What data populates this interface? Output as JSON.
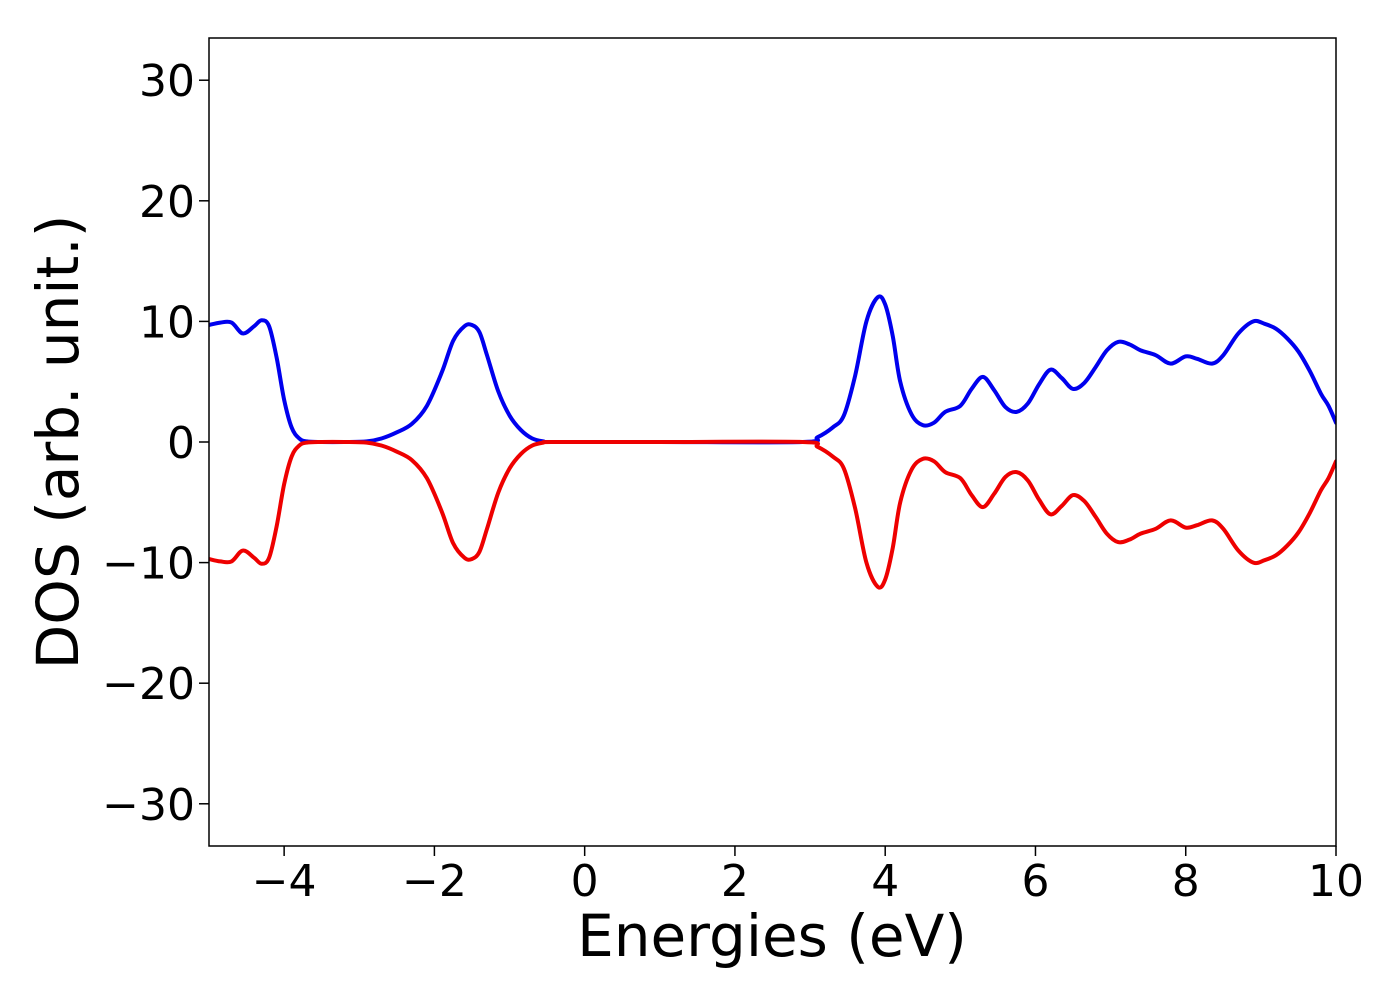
{
  "chart_data": {
    "type": "line",
    "title": "",
    "xlabel": "Energies (eV)",
    "ylabel": "DOS (arb. unit.)",
    "xlim": [
      -5,
      10
    ],
    "ylim": [
      -33.5,
      33.5
    ],
    "grid": false,
    "x_ticks": [
      -4,
      -2,
      0,
      2,
      4,
      6,
      8,
      10
    ],
    "x_tick_labels": [
      "−4",
      "−2",
      "0",
      "2",
      "4",
      "6",
      "8",
      "10"
    ],
    "y_ticks": [
      -30,
      -20,
      -10,
      0,
      10,
      20,
      30
    ],
    "y_tick_labels": [
      "−30",
      "−20",
      "−10",
      "0",
      "10",
      "20",
      "30"
    ],
    "series": [
      {
        "color": "#0000ee",
        "points": [
          [
            -5.0,
            9.7
          ],
          [
            -4.85,
            9.9
          ],
          [
            -4.7,
            9.9
          ],
          [
            -4.55,
            9.0
          ],
          [
            -4.4,
            9.6
          ],
          [
            -4.3,
            10.1
          ],
          [
            -4.2,
            9.6
          ],
          [
            -4.1,
            7.0
          ],
          [
            -4.0,
            3.5
          ],
          [
            -3.9,
            1.2
          ],
          [
            -3.8,
            0.3
          ],
          [
            -3.7,
            0.05
          ],
          [
            -3.5,
            0.0
          ],
          [
            -3.2,
            0.0
          ],
          [
            -2.9,
            0.05
          ],
          [
            -2.7,
            0.3
          ],
          [
            -2.5,
            0.8
          ],
          [
            -2.3,
            1.5
          ],
          [
            -2.1,
            3.0
          ],
          [
            -1.9,
            5.8
          ],
          [
            -1.75,
            8.4
          ],
          [
            -1.6,
            9.6
          ],
          [
            -1.5,
            9.7
          ],
          [
            -1.4,
            9.1
          ],
          [
            -1.3,
            7.2
          ],
          [
            -1.15,
            4.2
          ],
          [
            -1.0,
            2.2
          ],
          [
            -0.85,
            1.0
          ],
          [
            -0.7,
            0.3
          ],
          [
            -0.55,
            0.05
          ],
          [
            -0.4,
            0.0
          ],
          [
            1.0,
            0.0
          ],
          [
            2.9,
            0.0
          ],
          [
            3.1,
            0.4
          ],
          [
            3.3,
            1.2
          ],
          [
            3.45,
            2.2
          ],
          [
            3.6,
            5.5
          ],
          [
            3.75,
            10.0
          ],
          [
            3.9,
            12.0
          ],
          [
            4.0,
            11.4
          ],
          [
            4.1,
            8.8
          ],
          [
            4.2,
            5.0
          ],
          [
            4.35,
            2.3
          ],
          [
            4.5,
            1.4
          ],
          [
            4.65,
            1.6
          ],
          [
            4.8,
            2.5
          ],
          [
            5.0,
            3.0
          ],
          [
            5.15,
            4.4
          ],
          [
            5.3,
            5.4
          ],
          [
            5.45,
            4.3
          ],
          [
            5.6,
            2.9
          ],
          [
            5.75,
            2.5
          ],
          [
            5.9,
            3.2
          ],
          [
            6.05,
            4.8
          ],
          [
            6.2,
            6.0
          ],
          [
            6.35,
            5.3
          ],
          [
            6.5,
            4.4
          ],
          [
            6.65,
            4.9
          ],
          [
            6.8,
            6.2
          ],
          [
            6.95,
            7.6
          ],
          [
            7.1,
            8.3
          ],
          [
            7.25,
            8.1
          ],
          [
            7.4,
            7.6
          ],
          [
            7.6,
            7.2
          ],
          [
            7.8,
            6.5
          ],
          [
            8.0,
            7.1
          ],
          [
            8.15,
            6.9
          ],
          [
            8.35,
            6.5
          ],
          [
            8.5,
            7.2
          ],
          [
            8.7,
            9.0
          ],
          [
            8.9,
            10.0
          ],
          [
            9.05,
            9.8
          ],
          [
            9.2,
            9.4
          ],
          [
            9.35,
            8.6
          ],
          [
            9.5,
            7.5
          ],
          [
            9.65,
            5.9
          ],
          [
            9.8,
            4.0
          ],
          [
            9.9,
            3.0
          ],
          [
            10.0,
            1.6
          ]
        ]
      },
      {
        "color": "#ee0000",
        "points": [
          [
            -5.0,
            -9.7
          ],
          [
            -4.85,
            -9.9
          ],
          [
            -4.7,
            -9.9
          ],
          [
            -4.55,
            -9.0
          ],
          [
            -4.4,
            -9.6
          ],
          [
            -4.3,
            -10.1
          ],
          [
            -4.2,
            -9.6
          ],
          [
            -4.1,
            -7.0
          ],
          [
            -4.0,
            -3.5
          ],
          [
            -3.9,
            -1.2
          ],
          [
            -3.8,
            -0.3
          ],
          [
            -3.7,
            -0.05
          ],
          [
            -3.5,
            0.0
          ],
          [
            -3.2,
            0.0
          ],
          [
            -2.9,
            -0.05
          ],
          [
            -2.7,
            -0.3
          ],
          [
            -2.5,
            -0.8
          ],
          [
            -2.3,
            -1.5
          ],
          [
            -2.1,
            -3.0
          ],
          [
            -1.9,
            -5.8
          ],
          [
            -1.75,
            -8.4
          ],
          [
            -1.6,
            -9.6
          ],
          [
            -1.5,
            -9.7
          ],
          [
            -1.4,
            -9.1
          ],
          [
            -1.3,
            -7.2
          ],
          [
            -1.15,
            -4.2
          ],
          [
            -1.0,
            -2.2
          ],
          [
            -0.85,
            -1.0
          ],
          [
            -0.7,
            -0.3
          ],
          [
            -0.55,
            -0.05
          ],
          [
            -0.4,
            0.0
          ],
          [
            1.0,
            0.0
          ],
          [
            2.9,
            0.0
          ],
          [
            3.1,
            -0.4
          ],
          [
            3.3,
            -1.2
          ],
          [
            3.45,
            -2.2
          ],
          [
            3.6,
            -5.5
          ],
          [
            3.75,
            -10.0
          ],
          [
            3.9,
            -12.0
          ],
          [
            4.0,
            -11.4
          ],
          [
            4.1,
            -8.8
          ],
          [
            4.2,
            -5.0
          ],
          [
            4.35,
            -2.3
          ],
          [
            4.5,
            -1.4
          ],
          [
            4.65,
            -1.6
          ],
          [
            4.8,
            -2.5
          ],
          [
            5.0,
            -3.0
          ],
          [
            5.15,
            -4.4
          ],
          [
            5.3,
            -5.4
          ],
          [
            5.45,
            -4.3
          ],
          [
            5.6,
            -2.9
          ],
          [
            5.75,
            -2.5
          ],
          [
            5.9,
            -3.2
          ],
          [
            6.05,
            -4.8
          ],
          [
            6.2,
            -6.0
          ],
          [
            6.35,
            -5.3
          ],
          [
            6.5,
            -4.4
          ],
          [
            6.65,
            -4.9
          ],
          [
            6.8,
            -6.2
          ],
          [
            6.95,
            -7.6
          ],
          [
            7.1,
            -8.3
          ],
          [
            7.25,
            -8.1
          ],
          [
            7.4,
            -7.6
          ],
          [
            7.6,
            -7.2
          ],
          [
            7.8,
            -6.5
          ],
          [
            8.0,
            -7.1
          ],
          [
            8.15,
            -6.9
          ],
          [
            8.35,
            -6.5
          ],
          [
            8.5,
            -7.2
          ],
          [
            8.7,
            -9.0
          ],
          [
            8.9,
            -10.0
          ],
          [
            9.05,
            -9.8
          ],
          [
            9.2,
            -9.4
          ],
          [
            9.35,
            -8.6
          ],
          [
            9.5,
            -7.5
          ],
          [
            9.65,
            -5.9
          ],
          [
            9.8,
            -4.0
          ],
          [
            9.9,
            -3.0
          ],
          [
            10.0,
            -1.6
          ]
        ]
      }
    ]
  }
}
